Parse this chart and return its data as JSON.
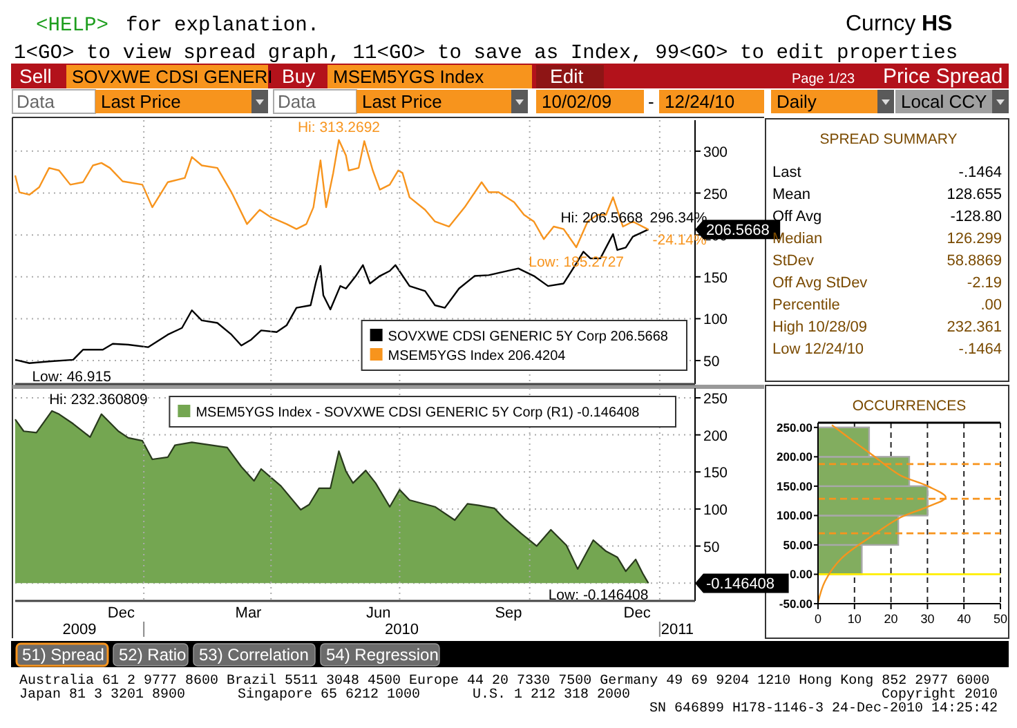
{
  "chart_data": [
    {
      "type": "other",
      "annotations": [
        "<HELP>",
        "for explanation.",
        "Curncy",
        "HS",
        "1<GO> to view spread graph, 11<GO> to save as Index, 99<GO> to edit properties",
        "Sell",
        "SOVXWE CDSI GENERI",
        "Buy",
        "MSEM5YGS Index",
        "Edit",
        "Page 1/23",
        "Price Spread",
        "Data",
        "Last Price",
        "Data",
        "Last Price",
        "10/02/09",
        "-",
        "12/24/10",
        "Daily",
        "Local CCY"
      ]
    },
    {
      "type": "line",
      "xlim": [
        "2009-10-02",
        "2011-01-26"
      ],
      "ylim": [
        22,
        337
      ],
      "yticks": [
        50,
        100,
        150,
        200,
        250,
        300
      ],
      "grid": true,
      "tick_labels": "y",
      "legend": "bottom right",
      "xticks": [
        {
          "value": "2010-01-01",
          "label": null
        },
        {
          "value": "2010-04-01",
          "label": null
        },
        {
          "value": "2010-07-01",
          "label": null
        },
        {
          "value": "2010-10-01",
          "label": null
        },
        {
          "value": "2011-01-01",
          "label": null
        }
      ],
      "series": [
        {
          "name": "SOVXWE CDSI GENERIC 5Y Corp 206.5668",
          "color": "#000000",
          "x": [
            "2009-10-02",
            "2009-10-12",
            "2009-10-26",
            "2009-11-12",
            "2009-11-19",
            "2009-12-03",
            "2009-12-10",
            "2009-12-21",
            "2010-01-04",
            "2010-01-18",
            "2010-01-28",
            "2010-02-04",
            "2010-02-11",
            "2010-02-22",
            "2010-03-04",
            "2010-03-11",
            "2010-03-18",
            "2010-03-25",
            "2010-04-05",
            "2010-04-12",
            "2010-04-19",
            "2010-04-29",
            "2010-05-03",
            "2010-05-06",
            "2010-05-08",
            "2010-05-13",
            "2010-05-20",
            "2010-05-24",
            "2010-05-31",
            "2010-06-05",
            "2010-06-10",
            "2010-06-17",
            "2010-06-24",
            "2010-06-28",
            "2010-07-08",
            "2010-07-19",
            "2010-07-26",
            "2010-08-02",
            "2010-08-12",
            "2010-08-23",
            "2010-09-02",
            "2010-09-23",
            "2010-10-04",
            "2010-10-14",
            "2010-10-25",
            "2010-11-03",
            "2010-11-08",
            "2010-11-13",
            "2010-11-20",
            "2010-11-29",
            "2010-12-02",
            "2010-12-08",
            "2010-12-13",
            "2010-12-24"
          ],
          "values": [
            51,
            46.915,
            49,
            51,
            63,
            63,
            70,
            69,
            66,
            81,
            89,
            110,
            98,
            95,
            81,
            68,
            75,
            86,
            84,
            92,
            113,
            116,
            145,
            163,
            128,
            111,
            139,
            136,
            151,
            164,
            142,
            151,
            157,
            164,
            139,
            133,
            116,
            113,
            136,
            151,
            152,
            160,
            151,
            139,
            142,
            166,
            180,
            172,
            172,
            201,
            182,
            185,
            198,
            206.5668
          ]
        },
        {
          "name": "MSEM5YGS Index 206.4204",
          "color": "#f7941d",
          "x": [
            "2009-10-02",
            "2009-10-05",
            "2009-10-12",
            "2009-10-19",
            "2009-10-26",
            "2009-11-02",
            "2009-11-10",
            "2009-11-19",
            "2009-11-26",
            "2009-12-02",
            "2009-12-08",
            "2009-12-17",
            "2009-12-31",
            "2010-01-07",
            "2010-01-18",
            "2010-01-30",
            "2010-02-04",
            "2010-02-11",
            "2010-02-22",
            "2010-03-04",
            "2010-03-15",
            "2010-03-24",
            "2010-04-01",
            "2010-04-12",
            "2010-04-19",
            "2010-04-26",
            "2010-05-01",
            "2010-05-06",
            "2010-05-10",
            "2010-05-15",
            "2010-05-19",
            "2010-05-24",
            "2010-05-26",
            "2010-06-02",
            "2010-06-06",
            "2010-06-12",
            "2010-06-17",
            "2010-06-24",
            "2010-06-30",
            "2010-07-03",
            "2010-07-08",
            "2010-07-19",
            "2010-07-26",
            "2010-08-05",
            "2010-08-16",
            "2010-08-28",
            "2010-09-02",
            "2010-09-09",
            "2010-09-20",
            "2010-09-27",
            "2010-10-04",
            "2010-10-11",
            "2010-10-18",
            "2010-10-25",
            "2010-11-03",
            "2010-11-11",
            "2010-11-18",
            "2010-11-24",
            "2010-11-29",
            "2010-12-06",
            "2010-12-13",
            "2010-12-24"
          ],
          "values": [
            271,
            251,
            248,
            257,
            280,
            277,
            260,
            263,
            283,
            286,
            280,
            264,
            260,
            233,
            263,
            268,
            293,
            283,
            280,
            251,
            213,
            230,
            221,
            213,
            207,
            213,
            233,
            289,
            233,
            274,
            313.2692,
            295,
            277,
            280,
            312,
            277,
            254,
            260,
            277,
            274,
            245,
            230,
            216,
            210,
            233,
            263,
            251,
            251,
            239,
            224,
            216,
            195,
            210,
            207,
            185.2727,
            216,
            224,
            224,
            245,
            210,
            216,
            206.4204
          ]
        }
      ],
      "annotations": [
        {
          "text": "Hi: 313.2692",
          "x": "2010-05-19",
          "y": 313.2692
        },
        {
          "text": "Low: 46.915",
          "x": "2009-10-12",
          "y": 46.915
        },
        {
          "text": "Hi: 206.5668",
          "x": "2010-12-24",
          "y": 206.5668
        },
        {
          "text": "Low: 185.2727",
          "x": "2010-11-03",
          "y": 185.2727
        },
        {
          "text": "296.34%",
          "x": "2010-12-24",
          "y": 206.5668
        },
        {
          "text": "-24.14%",
          "x": "2010-12-24",
          "y": 206.4204
        },
        "206.5668"
      ]
    },
    {
      "type": "area",
      "xlim": [
        "2009-10-02",
        "2011-01-26"
      ],
      "ylim": [
        -24,
        263
      ],
      "yticks": [
        {
          "value": 0,
          "label": null
        },
        50,
        100,
        150,
        200,
        250
      ],
      "grid": true,
      "legend": "top right",
      "xticks": [
        {
          "value": "2009-12-16",
          "label": "Dec"
        },
        {
          "value": "2010-01-01",
          "label": null
        },
        {
          "value": "2010-03-16",
          "label": "Mar"
        },
        {
          "value": "2010-04-01",
          "label": null
        },
        {
          "value": "2010-06-16",
          "label": "Jun"
        },
        {
          "value": "2010-07-01",
          "label": null
        },
        {
          "value": "2010-09-16",
          "label": "Sep"
        },
        {
          "value": "2010-10-01",
          "label": null
        },
        {
          "value": "2010-12-16",
          "label": "Dec"
        },
        {
          "value": "2011-01-01",
          "label": null
        }
      ],
      "series": [
        {
          "name": "MSEM5YGS Index - SOVXWE CDSI GENERIC 5Y Corp (R1) -0.146408",
          "color": "#74a651",
          "x": [
            "2009-10-02",
            "2009-10-08",
            "2009-10-17",
            "2009-10-28",
            "2009-11-02",
            "2009-11-12",
            "2009-11-24",
            "2009-12-02",
            "2009-12-14",
            "2009-12-21",
            "2009-12-31",
            "2010-01-07",
            "2010-01-18",
            "2010-01-23",
            "2010-02-04",
            "2010-03-01",
            "2010-03-11",
            "2010-03-20",
            "2010-03-25",
            "2010-04-08",
            "2010-04-22",
            "2010-04-28",
            "2010-05-05",
            "2010-05-13",
            "2010-05-19",
            "2010-05-24",
            "2010-05-29",
            "2010-06-07",
            "2010-06-14",
            "2010-06-24",
            "2010-07-01",
            "2010-07-08",
            "2010-07-26",
            "2010-08-09",
            "2010-08-18",
            "2010-08-26",
            "2010-09-06",
            "2010-09-13",
            "2010-09-25",
            "2010-10-06",
            "2010-10-16",
            "2010-10-27",
            "2010-11-04",
            "2010-11-15",
            "2010-11-24",
            "2010-12-02",
            "2010-12-08",
            "2010-12-15",
            "2010-12-20",
            "2010-12-24"
          ],
          "values": [
            221,
            205,
            203,
            232.360809,
            228,
            215,
            197,
            228,
            205,
            196,
            192,
            167,
            170,
            186,
            190,
            183,
            157,
            138,
            154,
            131,
            99,
            106,
            128,
            128,
            178,
            151,
            135,
            152,
            135,
            103,
            126,
            112,
            103,
            85,
            107,
            105,
            101,
            87,
            67,
            50,
            72,
            51,
            19,
            58,
            43,
            35,
            16,
            32,
            13,
            -0.146408
          ]
        }
      ],
      "annotations": [
        {
          "text": "Hi: 232.360809",
          "x": "2009-10-28",
          "y": 232.360809
        },
        {
          "text": "Low: -0.146408",
          "x": "2010-12-24",
          "y": -0.146408
        },
        "-0.146408",
        "2009",
        "2010",
        "2011"
      ]
    },
    {
      "type": "other",
      "title": "SPREAD SUMMARY",
      "annotations": [
        "Last",
        "-.1464",
        "Mean",
        "128.655",
        "Off Avg",
        "-128.80",
        "Median",
        "126.299",
        "StDev",
        "58.8869",
        "Off Avg StDev",
        "-2.19",
        "Percentile",
        ".00",
        "High 10/28/09",
        "232.361",
        "Low 12/24/10",
        "-.1464"
      ]
    },
    {
      "type": "histogram",
      "orientation": "horizontal",
      "title": "OCCURRENCES",
      "bins": [
        0,
        50,
        100,
        150,
        200,
        250
      ],
      "values": [
        12,
        22,
        30,
        25,
        14
      ],
      "color": "#82ad5f",
      "xlim": [
        0,
        50
      ],
      "xticks": [
        0,
        10,
        20,
        30,
        40,
        50
      ],
      "ylim": [
        -50,
        258
      ],
      "yticks": [
        {
          "value": 250,
          "label": "250.00"
        },
        {
          "value": 200,
          "label": "200.00"
        },
        {
          "value": 150,
          "label": "150.00"
        },
        {
          "value": 100,
          "label": "100.00"
        },
        {
          "value": 50,
          "label": "50.00"
        },
        {
          "value": 0,
          "label": "0.00"
        },
        {
          "value": -50,
          "label": "-50.00"
        }
      ],
      "grid": "x",
      "series": [
        {
          "type": "line",
          "color": "#f7941d",
          "x": [
            -48,
            -12,
            27,
            65,
            96,
            115,
            131,
            150,
            169,
            204,
            227,
            254
          ],
          "values": [
            0,
            1.9,
            6.4,
            14.7,
            22.4,
            30.1,
            35,
            30.1,
            22.4,
            14.7,
            9.6,
            3.8
          ]
        }
      ],
      "ref_lines": [
        {
          "axis": "y",
          "value": 0,
          "color": "#ffee00"
        },
        {
          "axis": "y",
          "value": 69.77,
          "color": "#f7941d",
          "line_style": "dashed"
        },
        {
          "axis": "y",
          "value": 128.655,
          "color": "#f7941d",
          "line_style": "dashed"
        },
        {
          "axis": "y",
          "value": 187.54,
          "color": "#f7941d",
          "line_style": "dashed"
        }
      ]
    },
    {
      "type": "other",
      "annotations": [
        "51) Spread",
        "52) Ratio",
        "53) Correlation",
        "54) Regression",
        "Australia 61 2 9777 8600 Brazil 5511 3048 4500 Europe 44 20 7330 7500 Germany 49 69 9204 1210 Hong Kong 852 2977 6000",
        "Japan 81 3 3201 8900",
        "Singapore 65 6212 1000",
        "U.S. 1 212 318 2000",
        "Copyright 2010",
        "SN 646899 H178-1146-3 24-Dec-2010 14:25:42"
      ]
    }
  ]
}
